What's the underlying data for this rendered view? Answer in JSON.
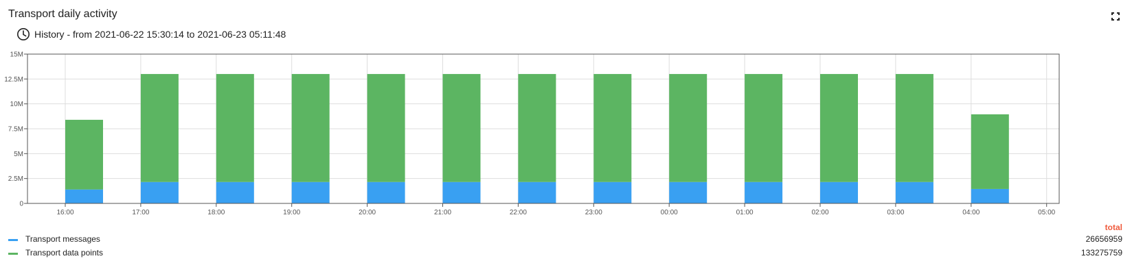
{
  "header": {
    "title": "Transport daily activity",
    "history_text": "History - from 2021-06-22 15:30:14 to 2021-06-23 05:11:48",
    "clock_icon": "clock-icon",
    "fullscreen_icon": "fullscreen-icon"
  },
  "colors": {
    "messages": "#39a0f2",
    "data_points": "#5cb562",
    "total_header": "#ef5a3c"
  },
  "chart_data": {
    "type": "bar",
    "stacked": true,
    "x_ticks": [
      "16:00",
      "17:00",
      "18:00",
      "19:00",
      "20:00",
      "21:00",
      "22:00",
      "23:00",
      "00:00",
      "01:00",
      "02:00",
      "03:00",
      "04:00",
      "05:00"
    ],
    "categories": [
      "16:00",
      "17:00",
      "18:00",
      "19:00",
      "20:00",
      "21:00",
      "22:00",
      "23:00",
      "00:00",
      "01:00",
      "02:00",
      "03:00",
      "04:00"
    ],
    "series": [
      {
        "name": "Transport messages",
        "values": [
          1400000,
          2150000,
          2150000,
          2150000,
          2150000,
          2150000,
          2150000,
          2150000,
          2150000,
          2150000,
          2150000,
          2150000,
          1450000
        ]
      },
      {
        "name": "Transport data points",
        "values": [
          7000000,
          10850000,
          10850000,
          10850000,
          10850000,
          10850000,
          10850000,
          10850000,
          10850000,
          10850000,
          10850000,
          10850000,
          7500000
        ]
      }
    ],
    "y_ticks": [
      "0",
      "2.5M",
      "5M",
      "7.5M",
      "10M",
      "12.5M",
      "15M"
    ],
    "ylim": [
      0,
      15000000
    ],
    "grid": true,
    "legend_position": "bottom"
  },
  "legend": {
    "total_header": "total",
    "items": [
      {
        "label": "Transport messages",
        "total": "26656959"
      },
      {
        "label": "Transport data points",
        "total": "133275759"
      }
    ]
  }
}
